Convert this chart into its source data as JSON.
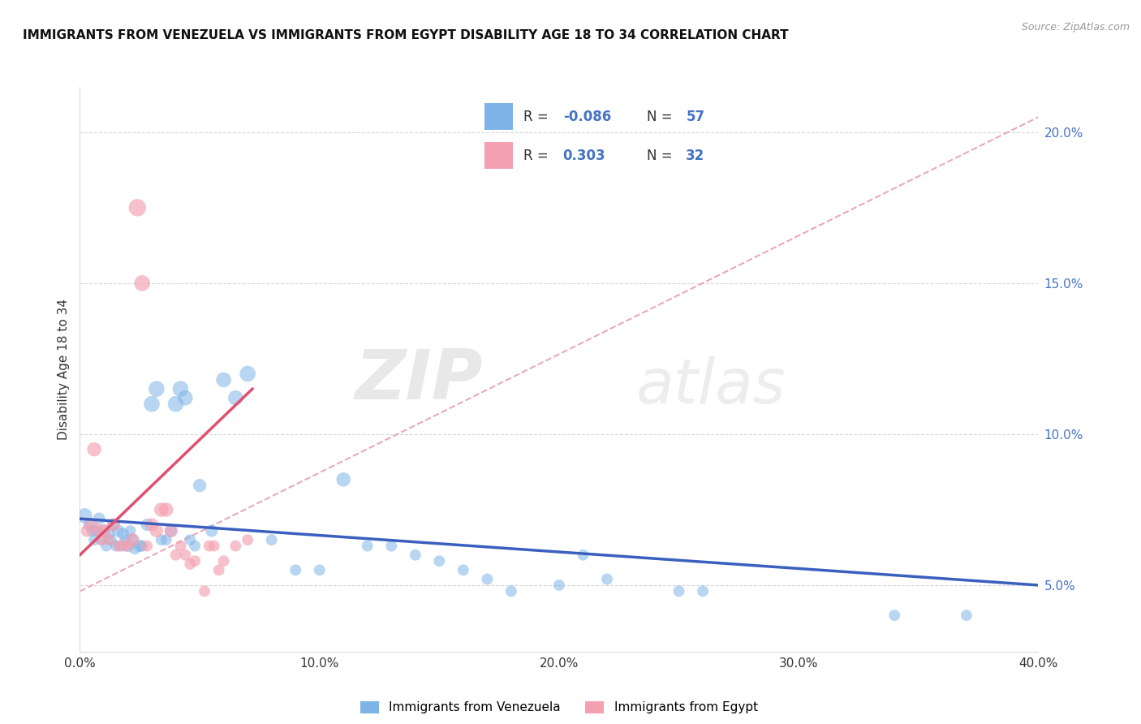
{
  "title": "IMMIGRANTS FROM VENEZUELA VS IMMIGRANTS FROM EGYPT DISABILITY AGE 18 TO 34 CORRELATION CHART",
  "source": "Source: ZipAtlas.com",
  "ylabel": "Disability Age 18 to 34",
  "xlim": [
    0.0,
    0.4
  ],
  "ylim": [
    0.028,
    0.215
  ],
  "xticks": [
    0.0,
    0.1,
    0.2,
    0.3,
    0.4
  ],
  "xtick_labels": [
    "0.0%",
    "10.0%",
    "20.0%",
    "30.0%",
    "40.0%"
  ],
  "yticks": [
    0.05,
    0.1,
    0.15,
    0.2
  ],
  "ytick_labels": [
    "5.0%",
    "10.0%",
    "15.0%",
    "20.0%"
  ],
  "legend_R_venezuela": "-0.086",
  "legend_N_venezuela": "57",
  "legend_R_egypt": "0.303",
  "legend_N_egypt": "32",
  "venezuela_color": "#7EB3E8",
  "egypt_color": "#F4A0B0",
  "trend_venezuela_color": "#3A5FBF",
  "trend_egypt_color": "#E05070",
  "trend_dashed_color": "#E8A0B0",
  "venezuela_x": [
    0.002,
    0.004,
    0.005,
    0.006,
    0.007,
    0.008,
    0.009,
    0.01,
    0.011,
    0.012,
    0.013,
    0.014,
    0.015,
    0.016,
    0.017,
    0.018,
    0.019,
    0.02,
    0.021,
    0.022,
    0.023,
    0.025,
    0.026,
    0.028,
    0.03,
    0.032,
    0.034,
    0.036,
    0.038,
    0.04,
    0.042,
    0.044,
    0.046,
    0.048,
    0.05,
    0.055,
    0.06,
    0.065,
    0.07,
    0.08,
    0.09,
    0.1,
    0.11,
    0.12,
    0.13,
    0.14,
    0.15,
    0.16,
    0.17,
    0.18,
    0.2,
    0.21,
    0.22,
    0.25,
    0.26,
    0.34,
    0.37
  ],
  "venezuela_y": [
    0.073,
    0.07,
    0.068,
    0.065,
    0.068,
    0.072,
    0.065,
    0.068,
    0.063,
    0.067,
    0.065,
    0.07,
    0.063,
    0.068,
    0.063,
    0.067,
    0.065,
    0.063,
    0.068,
    0.065,
    0.062,
    0.063,
    0.063,
    0.07,
    0.11,
    0.115,
    0.065,
    0.065,
    0.068,
    0.11,
    0.115,
    0.112,
    0.065,
    0.063,
    0.083,
    0.068,
    0.118,
    0.112,
    0.12,
    0.065,
    0.055,
    0.055,
    0.085,
    0.063,
    0.063,
    0.06,
    0.058,
    0.055,
    0.052,
    0.048,
    0.05,
    0.06,
    0.052,
    0.048,
    0.048,
    0.04,
    0.04
  ],
  "venezuela_size": [
    180,
    120,
    100,
    100,
    100,
    120,
    100,
    120,
    100,
    120,
    100,
    120,
    100,
    120,
    100,
    120,
    100,
    120,
    100,
    120,
    100,
    120,
    100,
    120,
    200,
    200,
    100,
    100,
    120,
    200,
    200,
    180,
    100,
    100,
    140,
    120,
    180,
    180,
    200,
    100,
    100,
    100,
    160,
    100,
    100,
    100,
    100,
    100,
    100,
    100,
    100,
    100,
    100,
    100,
    100,
    100,
    100
  ],
  "egypt_x": [
    0.003,
    0.005,
    0.006,
    0.008,
    0.009,
    0.01,
    0.012,
    0.014,
    0.016,
    0.018,
    0.02,
    0.022,
    0.024,
    0.026,
    0.028,
    0.03,
    0.032,
    0.034,
    0.036,
    0.038,
    0.04,
    0.042,
    0.044,
    0.046,
    0.048,
    0.052,
    0.054,
    0.056,
    0.058,
    0.06,
    0.065,
    0.07
  ],
  "egypt_y": [
    0.068,
    0.07,
    0.095,
    0.068,
    0.065,
    0.068,
    0.065,
    0.07,
    0.063,
    0.063,
    0.063,
    0.065,
    0.175,
    0.15,
    0.063,
    0.07,
    0.068,
    0.075,
    0.075,
    0.068,
    0.06,
    0.063,
    0.06,
    0.057,
    0.058,
    0.048,
    0.063,
    0.063,
    0.055,
    0.058,
    0.063,
    0.065
  ],
  "egypt_size": [
    120,
    140,
    160,
    120,
    100,
    140,
    100,
    140,
    100,
    100,
    100,
    140,
    240,
    200,
    100,
    140,
    140,
    160,
    160,
    140,
    100,
    100,
    100,
    100,
    100,
    100,
    100,
    100,
    100,
    100,
    100,
    100
  ]
}
